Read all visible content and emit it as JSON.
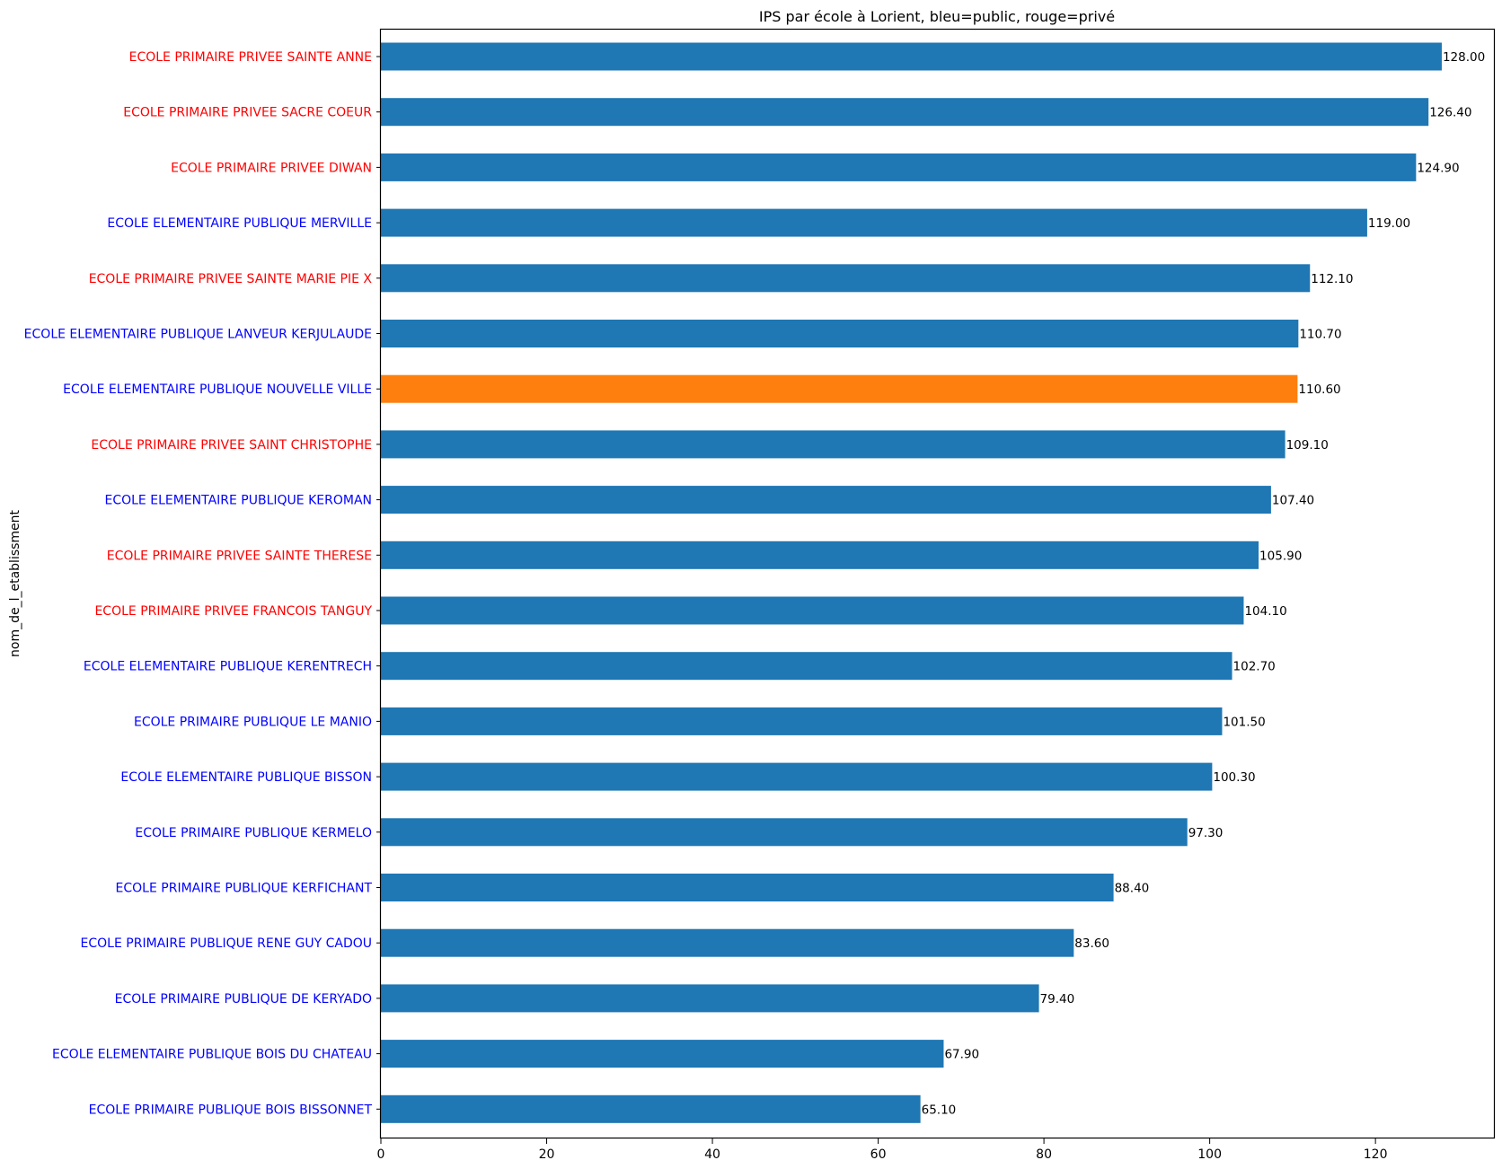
{
  "chart_data": {
    "type": "bar",
    "orientation": "horizontal",
    "title": "IPS par école à Lorient, bleu=public, rouge=privé",
    "xlabel": "",
    "ylabel": "nom_de_l_etablissment",
    "xlim": [
      0,
      134.4
    ],
    "xticks": [
      0,
      20,
      40,
      60,
      80,
      100,
      120
    ],
    "grid": false,
    "bar_color": "#1f77b4",
    "highlight_color": "#ff7f0e",
    "public_label_color": "#0000ff",
    "private_label_color": "#ff0000",
    "categories": [
      "ECOLE PRIMAIRE PRIVEE SAINTE ANNE",
      "ECOLE PRIMAIRE PRIVEE SACRE COEUR",
      "ECOLE PRIMAIRE PRIVEE DIWAN",
      "ECOLE ELEMENTAIRE PUBLIQUE MERVILLE",
      "ECOLE PRIMAIRE PRIVEE SAINTE MARIE PIE X",
      "ECOLE ELEMENTAIRE PUBLIQUE LANVEUR KERJULAUDE",
      "ECOLE ELEMENTAIRE PUBLIQUE NOUVELLE VILLE",
      "ECOLE PRIMAIRE PRIVEE SAINT CHRISTOPHE",
      "ECOLE ELEMENTAIRE PUBLIQUE KEROMAN",
      "ECOLE PRIMAIRE PRIVEE SAINTE THERESE",
      "ECOLE PRIMAIRE PRIVEE FRANCOIS TANGUY",
      "ECOLE ELEMENTAIRE PUBLIQUE KERENTRECH",
      "ECOLE PRIMAIRE PUBLIQUE LE MANIO",
      "ECOLE ELEMENTAIRE PUBLIQUE BISSON",
      "ECOLE PRIMAIRE PUBLIQUE KERMELO",
      "ECOLE PRIMAIRE PUBLIQUE KERFICHANT",
      "ECOLE PRIMAIRE PUBLIQUE RENE GUY CADOU",
      "ECOLE PRIMAIRE PUBLIQUE DE KERYADO",
      "ECOLE ELEMENTAIRE PUBLIQUE BOIS DU CHATEAU",
      "ECOLE PRIMAIRE PUBLIQUE BOIS BISSONNET"
    ],
    "values": [
      128.0,
      126.4,
      124.9,
      119.0,
      112.1,
      110.7,
      110.6,
      109.1,
      107.4,
      105.9,
      104.1,
      102.7,
      101.5,
      100.3,
      97.3,
      88.4,
      83.6,
      79.4,
      67.9,
      65.1
    ],
    "value_labels": [
      "128.00",
      "126.40",
      "124.90",
      "119.00",
      "112.10",
      "110.70",
      "110.60",
      "109.10",
      "107.40",
      "105.90",
      "104.10",
      "102.70",
      "101.50",
      "100.30",
      "97.30",
      "88.40",
      "83.60",
      "79.40",
      "67.90",
      "65.10"
    ],
    "sector": [
      "private",
      "private",
      "private",
      "public",
      "private",
      "public",
      "public",
      "private",
      "public",
      "private",
      "private",
      "public",
      "public",
      "public",
      "public",
      "public",
      "public",
      "public",
      "public",
      "public"
    ],
    "highlighted": [
      "ECOLE ELEMENTAIRE PUBLIQUE NOUVELLE VILLE"
    ]
  }
}
